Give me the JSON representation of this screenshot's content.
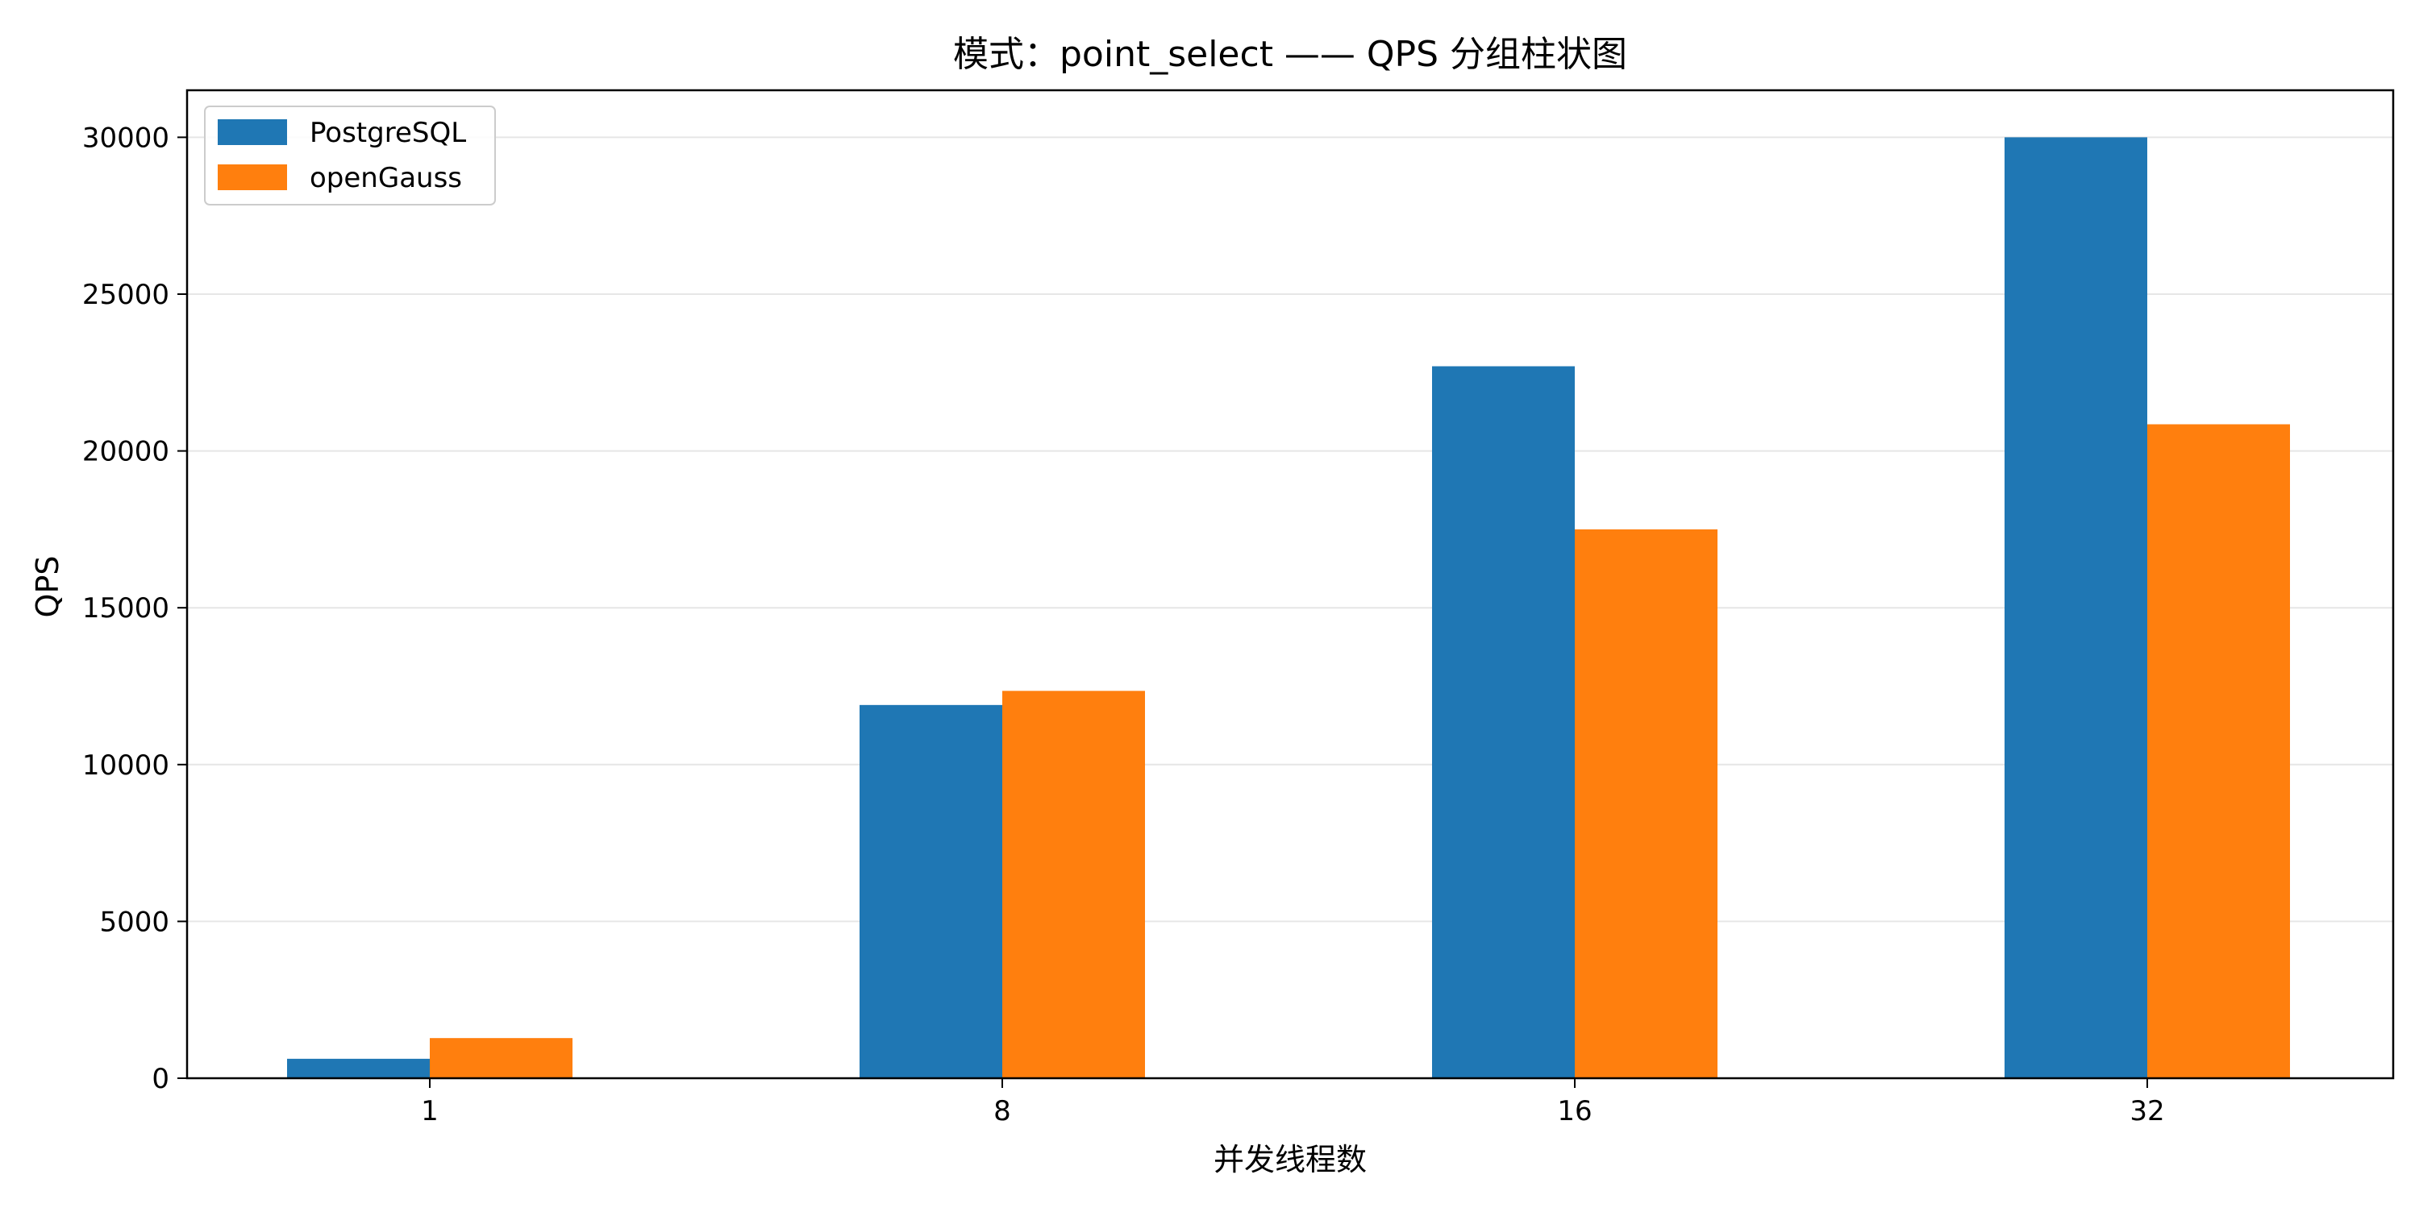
{
  "chart_data": {
    "type": "bar",
    "title": "模式：point_select —— QPS 分组柱状图",
    "xlabel": "并发线程数",
    "ylabel": "QPS",
    "categories": [
      "1",
      "8",
      "16",
      "32"
    ],
    "series": [
      {
        "name": "PostgreSQL",
        "color": "#1f77b4",
        "values": [
          620,
          11900,
          22700,
          30000
        ]
      },
      {
        "name": "openGauss",
        "color": "#ff7f0e",
        "values": [
          1280,
          12350,
          17500,
          20850
        ]
      }
    ],
    "ylim": [
      0,
      31500
    ],
    "yticks": [
      0,
      5000,
      10000,
      15000,
      20000,
      25000,
      30000
    ],
    "ytick_labels": [
      "0",
      "5000",
      "10000",
      "15000",
      "20000",
      "25000",
      "30000"
    ],
    "grid": "y",
    "legend_position": "top-left"
  }
}
